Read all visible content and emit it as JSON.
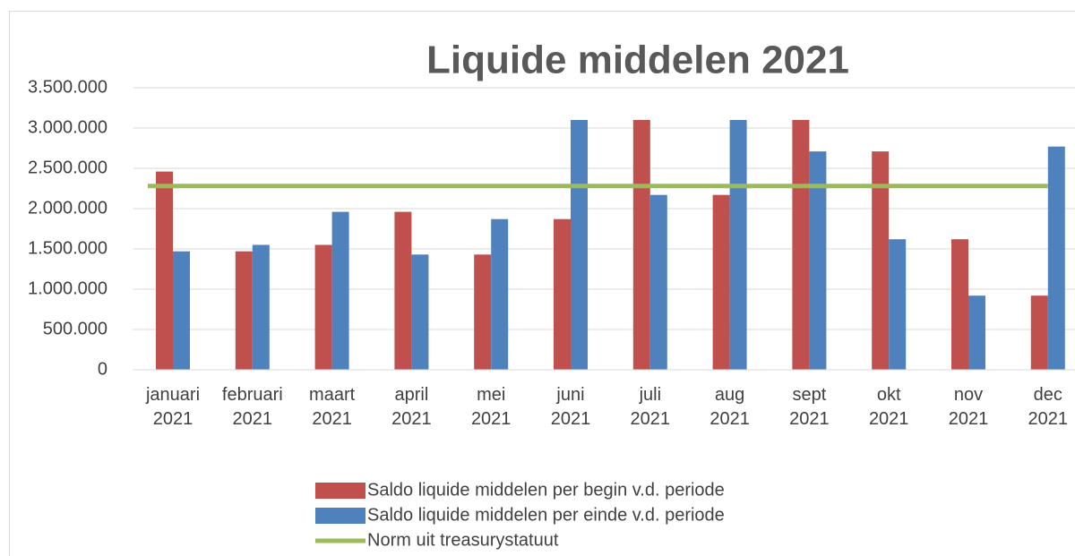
{
  "chart_data": {
    "type": "bar",
    "title": "Liquide middelen 2021",
    "categories": [
      "januari 2021",
      "februari 2021",
      "maart 2021",
      "april 2021",
      "mei 2021",
      "juni 2021",
      "juli 2021",
      "aug 2021",
      "sept 2021",
      "okt 2021",
      "nov 2021",
      "dec 2021"
    ],
    "series": [
      {
        "name": "Saldo liquide middelen per begin v.d. periode",
        "color": "#c0504d",
        "type": "bar",
        "values": [
          2460000,
          1470000,
          1550000,
          1960000,
          1430000,
          1870000,
          3100000,
          2170000,
          3100000,
          2710000,
          1620000,
          920000
        ]
      },
      {
        "name": "Saldo liquide middelen per einde v.d. periode",
        "color": "#4f81bd",
        "type": "bar",
        "values": [
          1470000,
          1550000,
          1960000,
          1430000,
          1870000,
          3100000,
          2170000,
          3100000,
          2710000,
          1620000,
          920000,
          2770000
        ]
      },
      {
        "name": "Norm uit treasurystatuut",
        "color": "#9bbb59",
        "type": "line",
        "values": [
          2280000,
          2280000,
          2280000,
          2280000,
          2280000,
          2280000,
          2280000,
          2280000,
          2280000,
          2280000,
          2280000,
          2280000
        ]
      }
    ],
    "ylim": [
      0,
      3500000
    ],
    "yticks": [
      0,
      {
        "value": 500000,
        "label": "500.000"
      },
      {
        "value": 1000000,
        "label": "1.000.000"
      },
      {
        "value": 1500000,
        "label": "1.500.000"
      },
      {
        "value": 2000000,
        "label": "2.000.000"
      },
      {
        "value": 2500000,
        "label": "2.500.000"
      },
      {
        "value": 3000000,
        "label": "3.000.000"
      },
      {
        "value": 3500000,
        "label": "3.500.000"
      }
    ],
    "grid": true,
    "legend": "bottom"
  }
}
